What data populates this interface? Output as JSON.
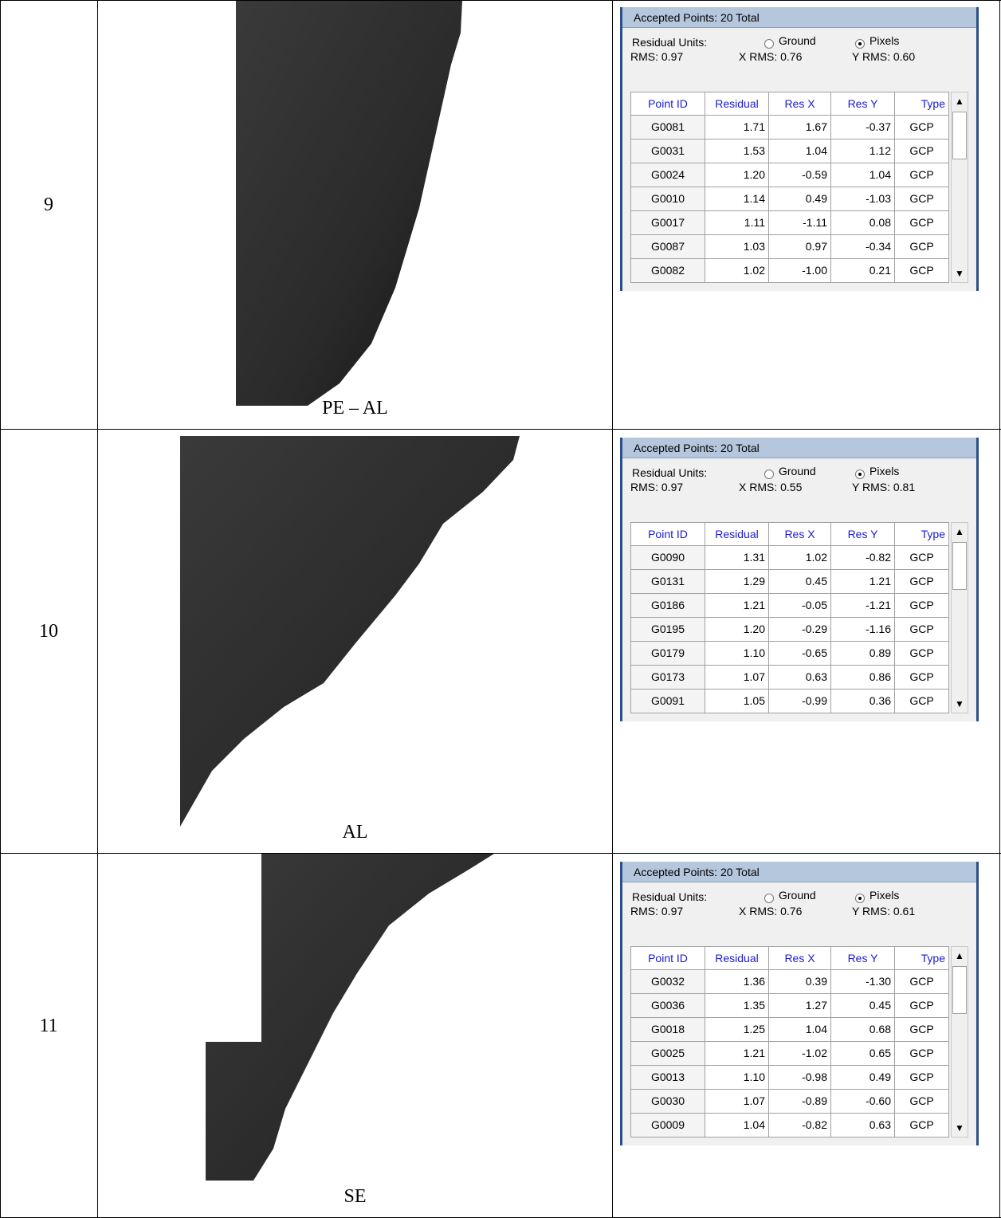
{
  "rows": [
    {
      "number": "9",
      "image_label": "PE – AL",
      "panel": {
        "title": "Accepted Points: 20 Total",
        "residual_units_label": "Residual Units:",
        "options": [
          "Ground",
          "Pixels"
        ],
        "rms": "RMS: 0.97",
        "x_rms": "X RMS: 0.76",
        "y_rms": "Y RMS: 0.60",
        "columns": [
          "Point ID",
          "Residual",
          "Res X",
          "Res Y",
          "Type"
        ],
        "points": [
          [
            "G0081",
            "1.71",
            "1.67",
            "-0.37",
            "GCP"
          ],
          [
            "G0031",
            "1.53",
            "1.04",
            "1.12",
            "GCP"
          ],
          [
            "G0024",
            "1.20",
            "-0.59",
            "1.04",
            "GCP"
          ],
          [
            "G0010",
            "1.14",
            "0.49",
            "-1.03",
            "GCP"
          ],
          [
            "G0017",
            "1.11",
            "-1.11",
            "0.08",
            "GCP"
          ],
          [
            "G0087",
            "1.03",
            "0.97",
            "-0.34",
            "GCP"
          ],
          [
            "G0082",
            "1.02",
            "-1.00",
            "0.21",
            "GCP"
          ]
        ]
      }
    },
    {
      "number": "10",
      "image_label": "AL",
      "panel": {
        "title": "Accepted Points: 20 Total",
        "residual_units_label": "Residual Units:",
        "options": [
          "Ground",
          "Pixels"
        ],
        "rms": "RMS: 0.97",
        "x_rms": "X RMS: 0.55",
        "y_rms": "Y RMS: 0.81",
        "columns": [
          "Point ID",
          "Residual",
          "Res X",
          "Res Y",
          "Type"
        ],
        "points": [
          [
            "G0090",
            "1.31",
            "1.02",
            "-0.82",
            "GCP"
          ],
          [
            "G0131",
            "1.29",
            "0.45",
            "1.21",
            "GCP"
          ],
          [
            "G0186",
            "1.21",
            "-0.05",
            "-1.21",
            "GCP"
          ],
          [
            "G0195",
            "1.20",
            "-0.29",
            "-1.16",
            "GCP"
          ],
          [
            "G0179",
            "1.10",
            "-0.65",
            "0.89",
            "GCP"
          ],
          [
            "G0173",
            "1.07",
            "0.63",
            "0.86",
            "GCP"
          ],
          [
            "G0091",
            "1.05",
            "-0.99",
            "0.36",
            "GCP"
          ]
        ]
      }
    },
    {
      "number": "11",
      "image_label": "SE",
      "panel": {
        "title": "Accepted Points: 20 Total",
        "residual_units_label": "Residual Units:",
        "options": [
          "Ground",
          "Pixels"
        ],
        "rms": "RMS: 0.97",
        "x_rms": "X RMS: 0.76",
        "y_rms": "Y RMS: 0.61",
        "columns": [
          "Point ID",
          "Residual",
          "Res X",
          "Res Y",
          "Type"
        ],
        "points": [
          [
            "G0032",
            "1.36",
            "0.39",
            "-1.30",
            "GCP"
          ],
          [
            "G0036",
            "1.35",
            "1.27",
            "0.45",
            "GCP"
          ],
          [
            "G0018",
            "1.25",
            "1.04",
            "0.68",
            "GCP"
          ],
          [
            "G0025",
            "1.21",
            "-1.02",
            "0.65",
            "GCP"
          ],
          [
            "G0013",
            "1.10",
            "-0.98",
            "0.49",
            "GCP"
          ],
          [
            "G0030",
            "1.07",
            "-0.89",
            "-0.60",
            "GCP"
          ],
          [
            "G0009",
            "1.04",
            "-0.82",
            "0.63",
            "GCP"
          ]
        ]
      }
    }
  ]
}
